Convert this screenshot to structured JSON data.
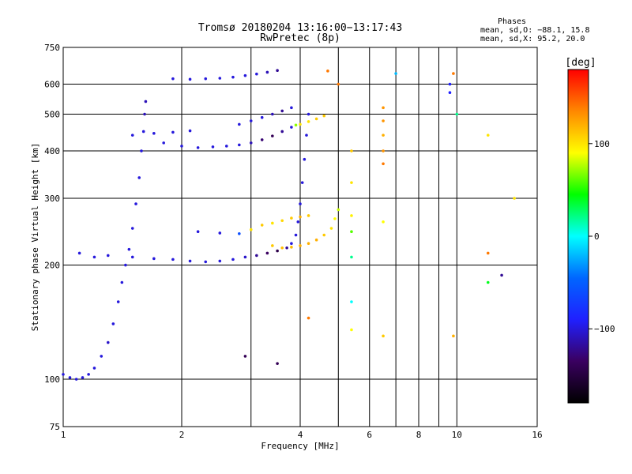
{
  "chart_data": {
    "type": "scatter",
    "title": "Tromsø 20180204 13:16:00−13:17:43",
    "subtitle": "RwPretec (8p)",
    "xlabel": "Frequency [MHz]",
    "ylabel": "Stationary phase Virtual Height [km]",
    "x_scale": "log",
    "y_scale": "log",
    "xlim": [
      1,
      16
    ],
    "ylim": [
      75,
      750
    ],
    "x_ticks": [
      1,
      2,
      4,
      6,
      8,
      10,
      16
    ],
    "x_tick_labels": [
      "1",
      "2",
      "4",
      "6",
      "8",
      "10",
      "16"
    ],
    "y_ticks": [
      75,
      100,
      200,
      300,
      400,
      500,
      600,
      750
    ],
    "y_tick_labels": [
      "75",
      "100",
      "200",
      "300",
      "400",
      "500",
      "600",
      "750"
    ],
    "x_minor_gridlines": [
      3,
      5,
      7,
      9
    ],
    "grid": true,
    "stats": {
      "heading": "Phases",
      "line_o": "mean, sd,O: −88.1, 15.8",
      "line_x": "mean, sd,X:  95.2, 20.0"
    },
    "colorbar": {
      "label": "[deg]",
      "range": [
        -180,
        180
      ],
      "ticks": [
        100,
        0,
        -100
      ],
      "tick_labels": [
        "100",
        "0",
        "−100"
      ],
      "stops": [
        "#000000",
        "#3a0060",
        "#2020ff",
        "#0066ff",
        "#00ffff",
        "#00ff00",
        "#ffff00",
        "#ff8800",
        "#ff0000"
      ]
    },
    "series": [
      {
        "values": [
          [
            1.0,
            103,
            -100
          ],
          [
            1.04,
            101,
            -100
          ],
          [
            1.08,
            100,
            -100
          ],
          [
            1.12,
            101,
            -100
          ],
          [
            1.16,
            103,
            -100
          ],
          [
            1.2,
            107,
            -100
          ],
          [
            1.25,
            115,
            -100
          ],
          [
            1.3,
            125,
            -105
          ],
          [
            1.34,
            140,
            -100
          ],
          [
            1.38,
            160,
            -100
          ],
          [
            1.41,
            180,
            -100
          ],
          [
            1.44,
            200,
            -100
          ],
          [
            1.47,
            220,
            -100
          ],
          [
            1.5,
            250,
            -100
          ],
          [
            1.53,
            290,
            -100
          ],
          [
            1.56,
            340,
            -100
          ],
          [
            1.58,
            400,
            -100
          ],
          [
            1.6,
            450,
            -100
          ],
          [
            1.61,
            500,
            -110
          ],
          [
            1.62,
            540,
            -110
          ],
          [
            1.1,
            215,
            -100
          ],
          [
            1.2,
            210,
            -100
          ],
          [
            1.3,
            212,
            -100
          ],
          [
            1.5,
            210,
            -100
          ],
          [
            1.7,
            208,
            -100
          ],
          [
            1.9,
            207,
            -100
          ],
          [
            2.1,
            205,
            -100
          ],
          [
            2.3,
            204,
            -100
          ],
          [
            2.5,
            205,
            -100
          ],
          [
            2.7,
            207,
            -100
          ],
          [
            2.9,
            210,
            -105
          ],
          [
            3.1,
            212,
            -120
          ],
          [
            3.3,
            215,
            -135
          ],
          [
            3.5,
            218,
            -145
          ],
          [
            3.7,
            222,
            -120
          ],
          [
            3.8,
            228,
            -100
          ],
          [
            3.9,
            240,
            -100
          ],
          [
            3.95,
            260,
            -100
          ],
          [
            4.0,
            290,
            -100
          ],
          [
            4.05,
            330,
            -100
          ],
          [
            4.1,
            380,
            -100
          ],
          [
            4.15,
            440,
            -100
          ],
          [
            4.2,
            500,
            -100
          ]
        ]
      },
      {
        "values": [
          [
            1.8,
            420,
            -100
          ],
          [
            2.0,
            412,
            -100
          ],
          [
            2.2,
            408,
            -100
          ],
          [
            2.4,
            410,
            -100
          ],
          [
            2.6,
            412,
            -100
          ],
          [
            2.8,
            415,
            -100
          ],
          [
            3.0,
            420,
            -110
          ],
          [
            3.2,
            428,
            -130
          ],
          [
            3.4,
            438,
            -140
          ],
          [
            3.6,
            450,
            -120
          ],
          [
            3.8,
            462,
            -100
          ],
          [
            3.9,
            468,
            70
          ],
          [
            4.0,
            470,
            100
          ],
          [
            4.2,
            478,
            100
          ],
          [
            4.4,
            486,
            110
          ],
          [
            4.6,
            495,
            110
          ]
        ]
      },
      {
        "values": [
          [
            1.5,
            440,
            -100
          ],
          [
            1.7,
            445,
            -100
          ],
          [
            1.9,
            448,
            -100
          ],
          [
            2.1,
            452,
            -100
          ],
          [
            2.8,
            470,
            -100
          ],
          [
            3.0,
            480,
            -100
          ],
          [
            3.2,
            490,
            -100
          ],
          [
            3.4,
            500,
            -110
          ],
          [
            3.6,
            510,
            -120
          ],
          [
            3.8,
            520,
            -100
          ]
        ]
      },
      {
        "values": [
          [
            1.9,
            620,
            -100
          ],
          [
            2.1,
            618,
            -100
          ],
          [
            2.3,
            620,
            -100
          ],
          [
            2.5,
            622,
            -100
          ],
          [
            2.7,
            626,
            -100
          ],
          [
            2.9,
            632,
            -100
          ],
          [
            3.1,
            638,
            -100
          ],
          [
            3.3,
            645,
            -110
          ],
          [
            3.5,
            652,
            -120
          ]
        ]
      },
      {
        "values": [
          [
            2.2,
            245,
            -100
          ],
          [
            2.5,
            243,
            -100
          ],
          [
            2.8,
            242,
            -60
          ],
          [
            3.0,
            248,
            100
          ],
          [
            3.2,
            255,
            110
          ],
          [
            3.4,
            258,
            100
          ],
          [
            3.6,
            262,
            105
          ],
          [
            3.8,
            266,
            110
          ],
          [
            4.0,
            268,
            120
          ],
          [
            4.2,
            270,
            110
          ]
        ]
      },
      {
        "values": [
          [
            3.4,
            225,
            110
          ],
          [
            3.6,
            222,
            115
          ],
          [
            3.8,
            223,
            115
          ],
          [
            4.0,
            225,
            120
          ],
          [
            4.2,
            228,
            120
          ],
          [
            4.4,
            233,
            120
          ],
          [
            4.6,
            240,
            110
          ],
          [
            4.8,
            250,
            100
          ],
          [
            4.9,
            265,
            90
          ],
          [
            5.0,
            280,
            80
          ]
        ]
      },
      {
        "values": [
          [
            5.4,
            400,
            110
          ],
          [
            5.4,
            330,
            100
          ],
          [
            5.4,
            270,
            95
          ],
          [
            5.4,
            245,
            60
          ],
          [
            5.4,
            210,
            20
          ],
          [
            5.4,
            160,
            0
          ],
          [
            5.4,
            135,
            90
          ],
          [
            6.5,
            520,
            130
          ],
          [
            6.5,
            480,
            130
          ],
          [
            6.5,
            440,
            120
          ],
          [
            6.5,
            400,
            130
          ],
          [
            6.5,
            370,
            140
          ],
          [
            6.5,
            260,
            90
          ],
          [
            6.5,
            130,
            110
          ],
          [
            7.0,
            640,
            -20
          ],
          [
            9.6,
            600,
            -90
          ],
          [
            9.6,
            570,
            -90
          ],
          [
            9.8,
            640,
            140
          ],
          [
            9.8,
            130,
            120
          ],
          [
            10.0,
            500,
            20
          ],
          [
            12.0,
            440,
            100
          ],
          [
            12.0,
            215,
            140
          ],
          [
            12.0,
            180,
            40
          ],
          [
            13.0,
            188,
            -120
          ],
          [
            14.0,
            300,
            100
          ],
          [
            2.9,
            115,
            -140
          ],
          [
            3.5,
            110,
            -140
          ],
          [
            4.2,
            145,
            140
          ],
          [
            4.7,
            650,
            140
          ],
          [
            5.0,
            600,
            140
          ]
        ]
      }
    ]
  }
}
